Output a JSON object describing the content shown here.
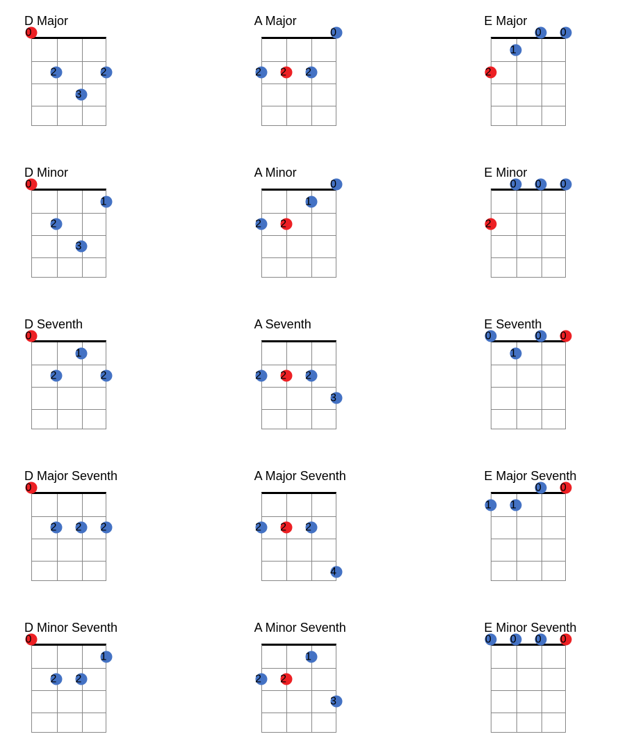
{
  "colors": {
    "blue": "#4472c4",
    "red": "#ed2024",
    "line": "#888888",
    "nut": "#000000",
    "text": "#000000",
    "background": "#ffffff"
  },
  "layout": {
    "strings": 4,
    "frets": 4,
    "diagram_width": 108,
    "diagram_height": 128,
    "dot_size": 17,
    "font_size": 18
  },
  "chords": [
    {
      "name": "D Major",
      "dots": [
        {
          "string": 0,
          "fret": 0,
          "color": "red"
        },
        {
          "string": 1,
          "fret": 2,
          "color": "blue"
        },
        {
          "string": 2,
          "fret": 3,
          "color": "blue"
        },
        {
          "string": 3,
          "fret": 2,
          "color": "blue"
        }
      ]
    },
    {
      "name": "A Major",
      "dots": [
        {
          "string": 3,
          "fret": 0,
          "color": "blue"
        },
        {
          "string": 0,
          "fret": 2,
          "color": "blue"
        },
        {
          "string": 1,
          "fret": 2,
          "color": "red"
        },
        {
          "string": 2,
          "fret": 2,
          "color": "blue"
        }
      ]
    },
    {
      "name": "E Major",
      "dots": [
        {
          "string": 2,
          "fret": 0,
          "color": "blue"
        },
        {
          "string": 3,
          "fret": 0,
          "color": "blue"
        },
        {
          "string": 1,
          "fret": 1,
          "color": "blue"
        },
        {
          "string": 0,
          "fret": 2,
          "color": "red"
        }
      ]
    },
    {
      "name": "D Minor",
      "dots": [
        {
          "string": 0,
          "fret": 0,
          "color": "red"
        },
        {
          "string": 3,
          "fret": 1,
          "color": "blue"
        },
        {
          "string": 1,
          "fret": 2,
          "color": "blue"
        },
        {
          "string": 2,
          "fret": 3,
          "color": "blue"
        }
      ]
    },
    {
      "name": "A Minor",
      "dots": [
        {
          "string": 3,
          "fret": 0,
          "color": "blue"
        },
        {
          "string": 2,
          "fret": 1,
          "color": "blue"
        },
        {
          "string": 0,
          "fret": 2,
          "color": "blue"
        },
        {
          "string": 1,
          "fret": 2,
          "color": "red"
        }
      ]
    },
    {
      "name": "E Minor",
      "dots": [
        {
          "string": 1,
          "fret": 0,
          "color": "blue"
        },
        {
          "string": 2,
          "fret": 0,
          "color": "blue"
        },
        {
          "string": 3,
          "fret": 0,
          "color": "blue"
        },
        {
          "string": 0,
          "fret": 2,
          "color": "red"
        }
      ]
    },
    {
      "name": "D Seventh",
      "dots": [
        {
          "string": 0,
          "fret": 0,
          "color": "red"
        },
        {
          "string": 2,
          "fret": 1,
          "color": "blue"
        },
        {
          "string": 1,
          "fret": 2,
          "color": "blue"
        },
        {
          "string": 3,
          "fret": 2,
          "color": "blue"
        }
      ]
    },
    {
      "name": "A Seventh",
      "dots": [
        {
          "string": 0,
          "fret": 2,
          "color": "blue"
        },
        {
          "string": 1,
          "fret": 2,
          "color": "red"
        },
        {
          "string": 2,
          "fret": 2,
          "color": "blue"
        },
        {
          "string": 3,
          "fret": 3,
          "color": "blue"
        }
      ]
    },
    {
      "name": "E Seventh",
      "dots": [
        {
          "string": 0,
          "fret": 0,
          "color": "blue"
        },
        {
          "string": 2,
          "fret": 0,
          "color": "blue"
        },
        {
          "string": 3,
          "fret": 0,
          "color": "red"
        },
        {
          "string": 1,
          "fret": 1,
          "color": "blue"
        }
      ]
    },
    {
      "name": "D Major Seventh",
      "dots": [
        {
          "string": 0,
          "fret": 0,
          "color": "red"
        },
        {
          "string": 1,
          "fret": 2,
          "color": "blue"
        },
        {
          "string": 2,
          "fret": 2,
          "color": "blue"
        },
        {
          "string": 3,
          "fret": 2,
          "color": "blue"
        }
      ]
    },
    {
      "name": "A Major Seventh",
      "dots": [
        {
          "string": 0,
          "fret": 2,
          "color": "blue"
        },
        {
          "string": 1,
          "fret": 2,
          "color": "red"
        },
        {
          "string": 2,
          "fret": 2,
          "color": "blue"
        },
        {
          "string": 3,
          "fret": 4,
          "color": "blue"
        }
      ]
    },
    {
      "name": "E Major Seventh",
      "dots": [
        {
          "string": 2,
          "fret": 0,
          "color": "blue"
        },
        {
          "string": 3,
          "fret": 0,
          "color": "red"
        },
        {
          "string": 0,
          "fret": 1,
          "color": "blue"
        },
        {
          "string": 1,
          "fret": 1,
          "color": "blue"
        }
      ]
    },
    {
      "name": "D Minor Seventh",
      "dots": [
        {
          "string": 0,
          "fret": 0,
          "color": "red"
        },
        {
          "string": 3,
          "fret": 1,
          "color": "blue"
        },
        {
          "string": 1,
          "fret": 2,
          "color": "blue"
        },
        {
          "string": 2,
          "fret": 2,
          "color": "blue"
        }
      ]
    },
    {
      "name": "A Minor Seventh",
      "dots": [
        {
          "string": 2,
          "fret": 1,
          "color": "blue"
        },
        {
          "string": 0,
          "fret": 2,
          "color": "blue"
        },
        {
          "string": 1,
          "fret": 2,
          "color": "red"
        },
        {
          "string": 3,
          "fret": 3,
          "color": "blue"
        }
      ]
    },
    {
      "name": "E Minor Seventh",
      "dots": [
        {
          "string": 0,
          "fret": 0,
          "color": "blue"
        },
        {
          "string": 1,
          "fret": 0,
          "color": "blue"
        },
        {
          "string": 2,
          "fret": 0,
          "color": "blue"
        },
        {
          "string": 3,
          "fret": 0,
          "color": "red"
        }
      ]
    }
  ]
}
